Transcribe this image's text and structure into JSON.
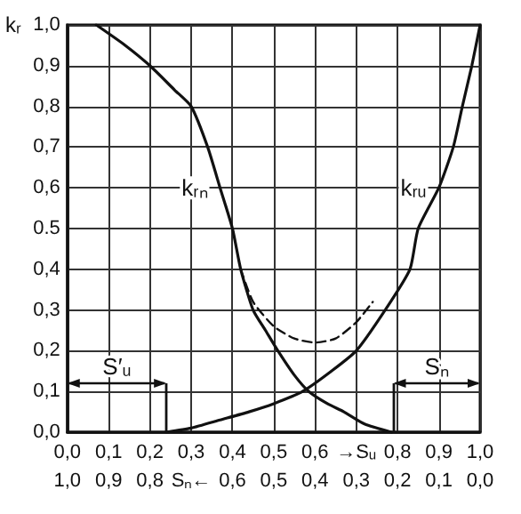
{
  "chart_data": {
    "type": "line",
    "ylabel": "kᵣ",
    "xlim": [
      0,
      1
    ],
    "ylim": [
      0,
      1
    ],
    "xticks": [
      {
        "value": 0,
        "label": "0,0"
      },
      {
        "value": 0.1,
        "label": "0,1"
      },
      {
        "value": 0.2,
        "label": "0,2"
      },
      {
        "value": 0.3,
        "label": "0,3"
      },
      {
        "value": 0.4,
        "label": "0,4"
      },
      {
        "value": 0.5,
        "label": "0,5"
      },
      {
        "value": 0.6,
        "label": "0,6"
      },
      {
        "value": 0.7,
        "label": "→Sᵤ"
      },
      {
        "value": 0.8,
        "label": "0,8"
      },
      {
        "value": 0.9,
        "label": "0,9"
      },
      {
        "value": 1,
        "label": "1,0"
      }
    ],
    "x2lim": [
      1,
      0
    ],
    "x2ticks": [
      {
        "value": 1,
        "label": "1,0"
      },
      {
        "value": 0.9,
        "label": "0,9"
      },
      {
        "value": 0.8,
        "label": "0,8"
      },
      {
        "value": 0.7,
        "label": "Sₙ←"
      },
      {
        "value": 0.6,
        "label": "0,6"
      },
      {
        "value": 0.5,
        "label": "0,5"
      },
      {
        "value": 0.4,
        "label": "0,4"
      },
      {
        "value": 0.3,
        "label": "0,3"
      },
      {
        "value": 0.2,
        "label": "0,2"
      },
      {
        "value": 0.1,
        "label": "0,1"
      },
      {
        "value": 0,
        "label": "0,0"
      }
    ],
    "yticks": [
      {
        "value": 0,
        "label": "0,0"
      },
      {
        "value": 0.1,
        "label": "0,1"
      },
      {
        "value": 0.2,
        "label": "0,2"
      },
      {
        "value": 0.3,
        "label": "0,3"
      },
      {
        "value": 0.4,
        "label": "0,4"
      },
      {
        "value": 0.5,
        "label": "0.5"
      },
      {
        "value": 0.6,
        "label": "0,6"
      },
      {
        "value": 0.7,
        "label": "0,7"
      },
      {
        "value": 0.8,
        "label": "0,8"
      },
      {
        "value": 0.9,
        "label": "0,9"
      },
      {
        "value": 1,
        "label": "1,0"
      }
    ],
    "grid": true,
    "marker": "none",
    "legend": false,
    "series": [
      {
        "name": "kᵣₙ",
        "color": "#111111",
        "line_style": "solid",
        "x": [
          0.07,
          0.14,
          0.2,
          0.26,
          0.3,
          0.34,
          0.37,
          0.4,
          0.42,
          0.45,
          0.48,
          0.51,
          0.55,
          0.585,
          0.63,
          0.67,
          0.72,
          0.785
        ],
        "values": [
          1.0,
          0.95,
          0.9,
          0.84,
          0.8,
          0.7,
          0.6,
          0.5,
          0.4,
          0.3,
          0.25,
          0.2,
          0.14,
          0.1,
          0.07,
          0.05,
          0.02,
          0.0
        ]
      },
      {
        "name": "kᵣᵤ",
        "color": "#111111",
        "line_style": "solid",
        "x": [
          0.24,
          0.3,
          0.37,
          0.44,
          0.5,
          0.57,
          0.64,
          0.7,
          0.77,
          0.83,
          0.85,
          0.9,
          0.935,
          0.957,
          0.98,
          1.0
        ],
        "values": [
          0.0,
          0.01,
          0.03,
          0.05,
          0.07,
          0.1,
          0.15,
          0.2,
          0.3,
          0.4,
          0.5,
          0.6,
          0.7,
          0.8,
          0.9,
          1.0
        ]
      },
      {
        "color": "#111111",
        "line_style": "dashed",
        "x": [
          0.42,
          0.45,
          0.5,
          0.55,
          0.6,
          0.65,
          0.7,
          0.74
        ],
        "values": [
          0.4,
          0.32,
          0.26,
          0.23,
          0.22,
          0.23,
          0.27,
          0.32
        ]
      }
    ],
    "ref_lines": [
      {
        "axis": "x",
        "value": 0.24,
        "label": "S′ᵤ"
      },
      {
        "axis": "x",
        "value": 0.79,
        "label": "Sₙ"
      }
    ]
  }
}
